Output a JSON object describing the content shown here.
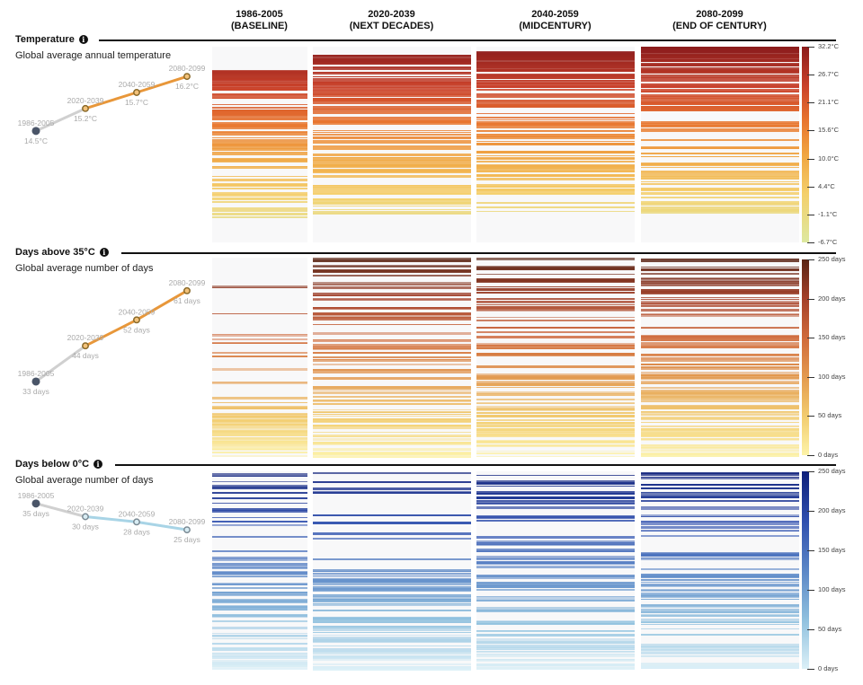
{
  "columns": [
    {
      "period": "1986-2005",
      "label": "(BASELINE)"
    },
    {
      "period": "2020-2039",
      "label": "(NEXT DECADES)"
    },
    {
      "period": "2040-2059",
      "label": "(MIDCENTURY)"
    },
    {
      "period": "2080-2099",
      "label": "(END OF CENTURY)"
    }
  ],
  "colors": {
    "baseline_dot": "#4a5568",
    "temp_line": "#e8973a",
    "cold_line": "#a8d4e6",
    "gray_line": "#d0d0d0"
  },
  "sections": [
    {
      "id": "temperature",
      "title": "Temperature",
      "info_icon": "info-icon",
      "subtitle": "Global average annual temperature",
      "scale_ticks": [
        "32.2°C",
        "26.7°C",
        "21.1°C",
        "15.6°C",
        "10.0°C",
        "4.4°C",
        "-1.1°C",
        "-6.7°C"
      ],
      "summary": [
        {
          "period": "1986-2005",
          "value": "14.5°C"
        },
        {
          "period": "2020-2039",
          "value": "15.2°C"
        },
        {
          "period": "2040-2059",
          "value": "15.7°C"
        },
        {
          "period": "2080-2099",
          "value": "16.2°C"
        }
      ]
    },
    {
      "id": "days-above-35",
      "title": "Days above 35°C",
      "info_icon": "info-icon",
      "subtitle": "Global average number of days",
      "scale_ticks": [
        "250 days",
        "200 days",
        "150 days",
        "100 days",
        "50 days",
        "0 days"
      ],
      "summary": [
        {
          "period": "1986-2005",
          "value": "33 days"
        },
        {
          "period": "2020-2039",
          "value": "44 days"
        },
        {
          "period": "2040-2059",
          "value": "52 days"
        },
        {
          "period": "2080-2099",
          "value": "61 days"
        }
      ]
    },
    {
      "id": "days-below-0",
      "title": "Days below 0°C",
      "info_icon": "info-icon",
      "subtitle": "Global average number of days",
      "scale_ticks": [
        "250 days",
        "200 days",
        "150 days",
        "100 days",
        "50 days",
        "0 days"
      ],
      "summary": [
        {
          "period": "1986-2005",
          "value": "35 days"
        },
        {
          "period": "2020-2039",
          "value": "30 days"
        },
        {
          "period": "2040-2059",
          "value": "28 days"
        },
        {
          "period": "2080-2099",
          "value": "25 days"
        }
      ]
    }
  ],
  "chart_data": [
    {
      "type": "line",
      "title": "Temperature — Global average annual temperature",
      "x": [
        "1986-2005",
        "2020-2039",
        "2040-2059",
        "2080-2099"
      ],
      "series": [
        {
          "name": "Global average annual temperature (°C)",
          "values": [
            14.5,
            15.2,
            15.7,
            16.2
          ]
        }
      ],
      "heatmap_scale": {
        "min": -6.7,
        "max": 32.2,
        "unit": "°C"
      }
    },
    {
      "type": "line",
      "title": "Days above 35°C — Global average number of days",
      "x": [
        "1986-2005",
        "2020-2039",
        "2040-2059",
        "2080-2099"
      ],
      "series": [
        {
          "name": "Days above 35°C",
          "values": [
            33,
            44,
            52,
            61
          ]
        }
      ],
      "heatmap_scale": {
        "min": 0,
        "max": 250,
        "unit": "days"
      }
    },
    {
      "type": "line",
      "title": "Days below 0°C — Global average number of days",
      "x": [
        "1986-2005",
        "2020-2039",
        "2040-2059",
        "2080-2099"
      ],
      "series": [
        {
          "name": "Days below 0°C",
          "values": [
            35,
            30,
            28,
            25
          ]
        }
      ],
      "heatmap_scale": {
        "min": 0,
        "max": 250,
        "unit": "days"
      }
    }
  ]
}
